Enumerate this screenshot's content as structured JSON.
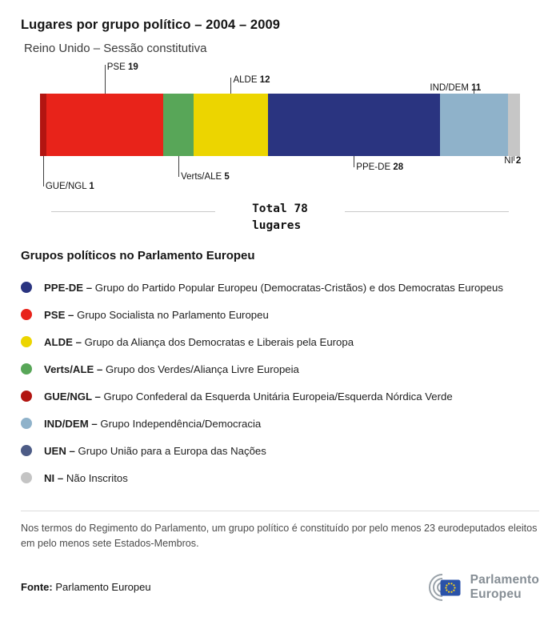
{
  "header": {
    "title": "Lugares por grupo político – 2004 – 2009",
    "subtitle": "Reino Unido – Sessão constitutiva"
  },
  "chart_data": {
    "type": "bar",
    "orientation": "horizontal-stacked",
    "title": "Lugares por grupo político – 2004 – 2009",
    "subtitle": "Reino Unido – Sessão constitutiva",
    "total": 78,
    "total_label": "Total 78",
    "total_sublabel": "lugares",
    "segments": [
      {
        "name": "GUE/NGL",
        "value": 1,
        "color": "#b21511",
        "side": "below",
        "len": 38,
        "align": "left"
      },
      {
        "name": "PSE",
        "value": 19,
        "color": "#e8231a",
        "side": "above",
        "len": 36,
        "align": "left"
      },
      {
        "name": "Verts/ALE",
        "value": 5,
        "color": "#58a658",
        "side": "below",
        "len": 26,
        "align": "left"
      },
      {
        "name": "ALDE",
        "value": 12,
        "color": "#ecd500",
        "side": "above",
        "len": 20,
        "align": "left"
      },
      {
        "name": "PPE-DE",
        "value": 28,
        "color": "#2a3480",
        "side": "below",
        "len": 14,
        "align": "left"
      },
      {
        "name": "IND/DEM",
        "value": 11,
        "color": "#8fb2ca",
        "side": "above",
        "len": 10,
        "align": "right"
      },
      {
        "name": "NI",
        "value": 2,
        "color": "#c6c6c6",
        "side": "below",
        "len": 6,
        "align": "right"
      }
    ]
  },
  "legend": {
    "heading": "Grupos políticos no Parlamento Europeu",
    "items": [
      {
        "abbr": "PPE-DE",
        "desc": "Grupo do Partido Popular Europeu (Democratas-Cristãos) e dos Democratas Europeus",
        "color": "#2a3480"
      },
      {
        "abbr": "PSE",
        "desc": "Grupo Socialista no Parlamento Europeu",
        "color": "#e8231a"
      },
      {
        "abbr": "ALDE",
        "desc": "Grupo da Aliança dos Democratas e Liberais pela Europa",
        "color": "#ecd500"
      },
      {
        "abbr": "Verts/ALE",
        "desc": "Grupo dos Verdes/Aliança Livre Europeia",
        "color": "#58a658"
      },
      {
        "abbr": "GUE/NGL",
        "desc": "Grupo Confederal da Esquerda Unitária Europeia/Esquerda Nórdica Verde",
        "color": "#b21511"
      },
      {
        "abbr": "IND/DEM",
        "desc": "Grupo Independência/Democracia",
        "color": "#8fb2ca"
      },
      {
        "abbr": "UEN",
        "desc": "Grupo União para a Europa das Nações",
        "color": "#4d5c86"
      },
      {
        "abbr": "NI",
        "desc": "Não Inscritos",
        "color": "#c4c4c4"
      }
    ]
  },
  "footnote": {
    "text": "Nos termos do Regimento do Parlamento, um grupo político é constituído por pelo menos 23 eurodeputados eleitos em pelo menos sete Estados-Membros."
  },
  "source": {
    "label": "Fonte:",
    "text": "Parlamento Europeu"
  },
  "logo": {
    "line1": "Parlamento",
    "line2": "Europeu"
  }
}
